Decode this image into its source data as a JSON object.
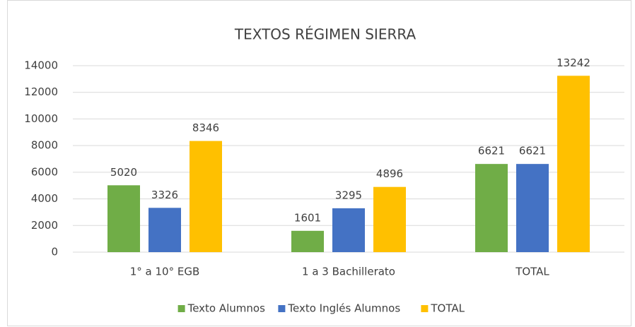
{
  "chart_data": {
    "type": "bar",
    "title": "TEXTOS RÉGIMEN SIERRA",
    "categories": [
      "1° a 10° EGB",
      "1 a 3 Bachillerato",
      "TOTAL"
    ],
    "series": [
      {
        "name": "Texto Alumnos",
        "color": "#70ad47",
        "values": [
          5020,
          1601,
          6621
        ]
      },
      {
        "name": "Texto Inglés Alumnos",
        "color": "#4472c4",
        "values": [
          3326,
          3295,
          6621
        ]
      },
      {
        "name": "TOTAL",
        "color": "#ffc000",
        "values": [
          8346,
          4896,
          13242
        ]
      }
    ],
    "ylim": [
      0,
      14000
    ],
    "yticks": [
      0,
      2000,
      4000,
      6000,
      8000,
      10000,
      12000,
      14000
    ],
    "grid": true,
    "legend": "bottom"
  }
}
